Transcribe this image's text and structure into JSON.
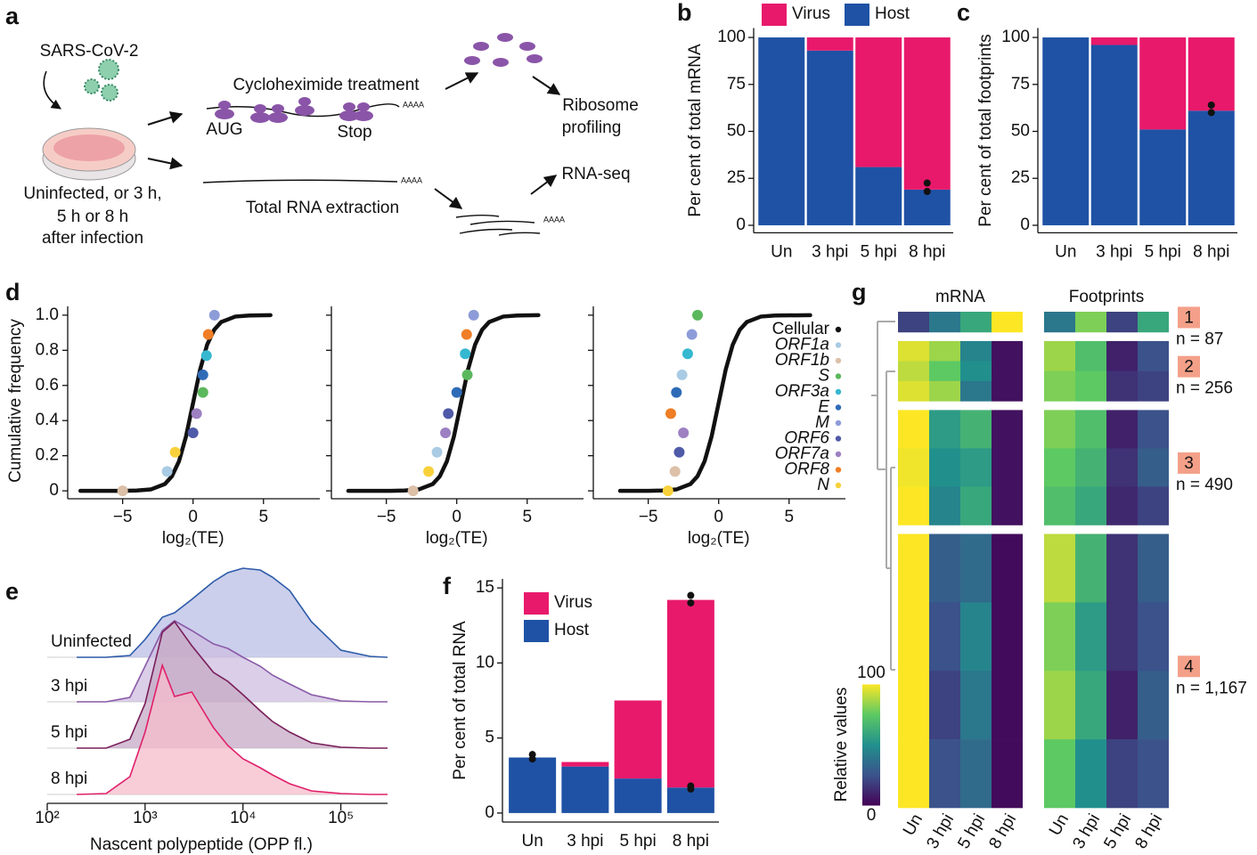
{
  "panel_labels": [
    "a",
    "b",
    "c",
    "d",
    "e",
    "f",
    "g"
  ],
  "panel_a": {
    "virus": "SARS-CoV-2",
    "condition_lines": [
      "Uninfected, or 3 h,",
      "5 h or 8 h",
      "after infection"
    ],
    "treatment": "Cycloheximide treatment",
    "start_codon": "AUG",
    "stop_codon": "Stop",
    "poly_a": "AAAA",
    "ribosome_profiling": [
      "Ribosome",
      "profiling"
    ],
    "rna_seq": "RNA-seq",
    "extraction": "Total RNA extraction"
  },
  "chart_data": [
    {
      "type": "stacked_bar",
      "ylabel": "Per cent of total mRNA",
      "categories": [
        "Un",
        "3 hpi",
        "5 hpi",
        "8 hpi"
      ],
      "series": [
        {
          "name": "Virus",
          "color": "#e8196b",
          "values": [
            0,
            7,
            69,
            81
          ]
        },
        {
          "name": "Host",
          "color": "#1f52a5",
          "values": [
            100,
            93,
            31,
            19
          ]
        }
      ],
      "ylim": [
        -4,
        105
      ],
      "yticks": [
        0,
        25,
        50,
        75,
        100
      ],
      "dots": {
        "categories": [
          "8 hpi",
          "8 hpi"
        ],
        "values": [
          22.5,
          18
        ]
      }
    },
    {
      "type": "stacked_bar",
      "ylabel": "Per cent of total footprints",
      "categories": [
        "Un",
        "3 hpi",
        "5 hpi",
        "8 hpi"
      ],
      "series": [
        {
          "color": "#e8196b",
          "values": [
            0,
            4,
            49,
            39
          ]
        },
        {
          "color": "#1f52a5",
          "values": [
            100,
            96,
            51,
            61
          ]
        }
      ],
      "ylim": [
        -4,
        105
      ],
      "yticks": [
        0,
        25,
        50,
        75,
        100
      ],
      "dots": {
        "categories": [
          "8 hpi",
          "8 hpi"
        ],
        "values": [
          64,
          60
        ]
      }
    },
    {
      "type": "cumulative",
      "ylabel": "Cumulative frequency",
      "xlabel": "log₂(TE)",
      "xlim": [
        -8.9,
        9
      ],
      "ylim": [
        -0.045,
        1.05
      ],
      "xticks": [
        {
          "value": -5,
          "label": "−5"
        },
        0,
        5
      ],
      "yticks": [
        0,
        0.2,
        0.4,
        0.6,
        0.8,
        {
          "value": 1,
          "label": "1.0"
        }
      ],
      "series": [
        {
          "name": "Cellular",
          "color": "#111111"
        },
        {
          "name": "ORF1a",
          "color": "#a9cbe4"
        },
        {
          "name": "ORF1b",
          "color": "#dcc0a8"
        },
        {
          "name": "S",
          "color": "#5cb85c"
        },
        {
          "name": "ORF3a",
          "color": "#35b8d0"
        },
        {
          "name": "E",
          "color": "#2e6bb7"
        },
        {
          "name": "M",
          "color": "#8d9cd8"
        },
        {
          "name": "ORF6",
          "color": "#4f5aa8"
        },
        {
          "name": "ORF7a",
          "color": "#9d80c2"
        },
        {
          "name": "ORF8",
          "color": "#f07e26"
        },
        {
          "name": "N",
          "color": "#f8d13a"
        }
      ],
      "panels": [
        {
          "curve_x": [
            -8,
            -6,
            -5,
            -4,
            -3,
            -2,
            -1.5,
            -1,
            -0.5,
            0,
            0.5,
            1,
            1.5,
            2,
            3,
            4,
            5.5
          ],
          "curve_y": [
            0,
            0,
            0,
            0.002,
            0.008,
            0.039,
            0.083,
            0.168,
            0.31,
            0.5,
            0.69,
            0.832,
            0.917,
            0.961,
            0.992,
            0.998,
            1
          ],
          "x": [
            -1.84,
            -5,
            0.7,
            0.95,
            0.7,
            1.52,
            0,
            0.25,
            1.08,
            -1.27
          ],
          "y": [
            0.11,
            0,
            0.56,
            0.77,
            0.66,
            1.0,
            0.33,
            0.44,
            0.89,
            0.22
          ]
        },
        {
          "curve_x": [
            -7.7,
            -5.7,
            -4.7,
            -3.7,
            -2.7,
            -1.7,
            -1.2,
            -0.7,
            -0.2,
            0.3,
            0.8,
            1.3,
            1.8,
            2.3,
            3.3,
            4.3,
            5.8
          ],
          "curve_y": [
            0,
            0,
            0,
            0.002,
            0.008,
            0.039,
            0.083,
            0.168,
            0.31,
            0.5,
            0.69,
            0.832,
            0.917,
            0.961,
            0.992,
            0.998,
            1
          ],
          "x": [
            -1.4,
            -3.1,
            0.75,
            0.6,
            0,
            1.2,
            -0.6,
            -0.8,
            0.7,
            -2
          ],
          "y": [
            0.22,
            0,
            0.66,
            0.78,
            0.56,
            1.0,
            0.44,
            0.33,
            0.89,
            0.11
          ]
        },
        {
          "curve_x": [
            -7,
            -6,
            -5,
            -4,
            -3,
            -2,
            -1.5,
            -1,
            -0.5,
            0,
            0.5,
            1,
            1.5,
            2,
            3,
            4,
            6.5
          ],
          "curve_y": [
            0,
            0,
            0,
            0.002,
            0.008,
            0.039,
            0.083,
            0.168,
            0.31,
            0.5,
            0.69,
            0.832,
            0.917,
            0.961,
            0.992,
            0.998,
            1
          ],
          "x": [
            -2.6,
            -3.1,
            -1.5,
            -2.2,
            -3.0,
            -1.9,
            -2.8,
            -2.5,
            -3.4,
            -3.6
          ],
          "y": [
            0.66,
            0.11,
            1.0,
            0.78,
            0.56,
            0.89,
            0.22,
            0.33,
            0.44,
            0
          ]
        }
      ]
    },
    {
      "type": "ridgeline",
      "xlabel": "Nascent polypeptide (OPP fl.)",
      "log_x": true,
      "xlim": [
        100,
        300000
      ],
      "xticks": [
        {
          "value": 100,
          "label": "10²"
        },
        {
          "value": 1000,
          "label": "10³"
        },
        {
          "value": 10000,
          "label": "10⁴"
        },
        {
          "value": 100000,
          "label": "10⁵"
        }
      ],
      "x": [
        200,
        400,
        700,
        1000,
        1500,
        2000,
        3000,
        5000,
        7000,
        10000,
        15000,
        20000,
        30000,
        50000,
        100000,
        200000,
        300000
      ],
      "series": [
        {
          "name": "Uninfected",
          "color": "#2c5aa8",
          "fill": "#b9bfe6",
          "values": [
            0,
            0,
            2,
            20,
            45,
            50,
            65,
            85,
            95,
            100,
            98,
            90,
            75,
            40,
            8,
            1,
            0
          ]
        },
        {
          "name": "3 hpi",
          "color": "#8a5aa8",
          "fill": "#cdbde0",
          "values": [
            0,
            0,
            5,
            40,
            80,
            91,
            80,
            65,
            60,
            50,
            40,
            30,
            20,
            8,
            1,
            0,
            0
          ]
        },
        {
          "name": "5 hpi",
          "color": "#7a1e5a",
          "fill": "#c6a9c6",
          "values": [
            0,
            0,
            10,
            50,
            130,
            142,
            115,
            85,
            75,
            60,
            42,
            30,
            18,
            6,
            1,
            0,
            0
          ]
        },
        {
          "name": "8 hpi",
          "color": "#e0206a",
          "fill": "#f5bccb",
          "values": [
            0,
            1,
            20,
            70,
            145,
            110,
            115,
            75,
            55,
            40,
            30,
            22,
            12,
            4,
            1,
            0,
            0
          ]
        }
      ]
    },
    {
      "type": "stacked_bar",
      "ylabel": "Per cent of total RNA",
      "categories": [
        "Un",
        "3 hpi",
        "5 hpi",
        "8 hpi"
      ],
      "series": [
        {
          "name": "Virus",
          "color": "#e8196b",
          "values": [
            0,
            0.3,
            5.2,
            12.5
          ]
        },
        {
          "name": "Host",
          "color": "#1f52a5",
          "values": [
            3.7,
            3.1,
            2.3,
            1.7
          ]
        }
      ],
      "ylim": [
        -0.6,
        15.6
      ],
      "yticks": [
        0,
        5,
        10,
        15
      ],
      "dots": {
        "categories": [
          "Un",
          "Un",
          "8 hpi",
          "8 hpi",
          "8 hpi",
          "8 hpi"
        ],
        "values": [
          3.9,
          3.6,
          14.5,
          14.0,
          1.8,
          1.6
        ]
      }
    },
    {
      "type": "heatmap",
      "column_groups": [
        "mRNA",
        "Footprints"
      ],
      "categories": [
        "Un",
        "3 hpi",
        "5 hpi",
        "8 hpi"
      ],
      "colorscale": [
        "#440154",
        "#3b528b",
        "#21908d",
        "#5dc963",
        "#fde725"
      ],
      "colorbar": {
        "label": "Relative values",
        "ticks": [
          0,
          100
        ]
      },
      "clusters": [
        {
          "label": "1",
          "n": 87,
          "n_label": "n = 87",
          "mrna": [
            [
              20,
              40,
              60,
              100
            ]
          ],
          "footprints": [
            [
              40,
              80,
              20,
              60
            ]
          ]
        },
        {
          "label": "2",
          "n": 256,
          "n_label": "n = 256",
          "mrna": [
            [
              95,
              85,
              45,
              5
            ],
            [
              90,
              75,
              50,
              5
            ],
            [
              95,
              85,
              40,
              5
            ]
          ],
          "footprints": [
            [
              85,
              70,
              10,
              25
            ],
            [
              80,
              75,
              15,
              20
            ]
          ]
        },
        {
          "label": "3",
          "n": 490,
          "n_label": "n = 490",
          "mrna": [
            [
              100,
              55,
              65,
              5
            ],
            [
              98,
              50,
              55,
              5
            ],
            [
              100,
              45,
              60,
              5
            ]
          ],
          "footprints": [
            [
              80,
              70,
              10,
              25
            ],
            [
              75,
              65,
              15,
              30
            ],
            [
              70,
              60,
              12,
              20
            ]
          ]
        },
        {
          "label": "4",
          "n": 1167,
          "n_label": "n = 1,167",
          "mrna": [
            [
              100,
              30,
              35,
              3
            ],
            [
              100,
              25,
              45,
              3
            ],
            [
              100,
              20,
              40,
              3
            ],
            [
              100,
              25,
              35,
              3
            ]
          ],
          "footprints": [
            [
              90,
              65,
              15,
              30
            ],
            [
              80,
              55,
              15,
              25
            ],
            [
              85,
              60,
              10,
              30
            ],
            [
              75,
              50,
              20,
              25
            ]
          ]
        }
      ]
    }
  ]
}
